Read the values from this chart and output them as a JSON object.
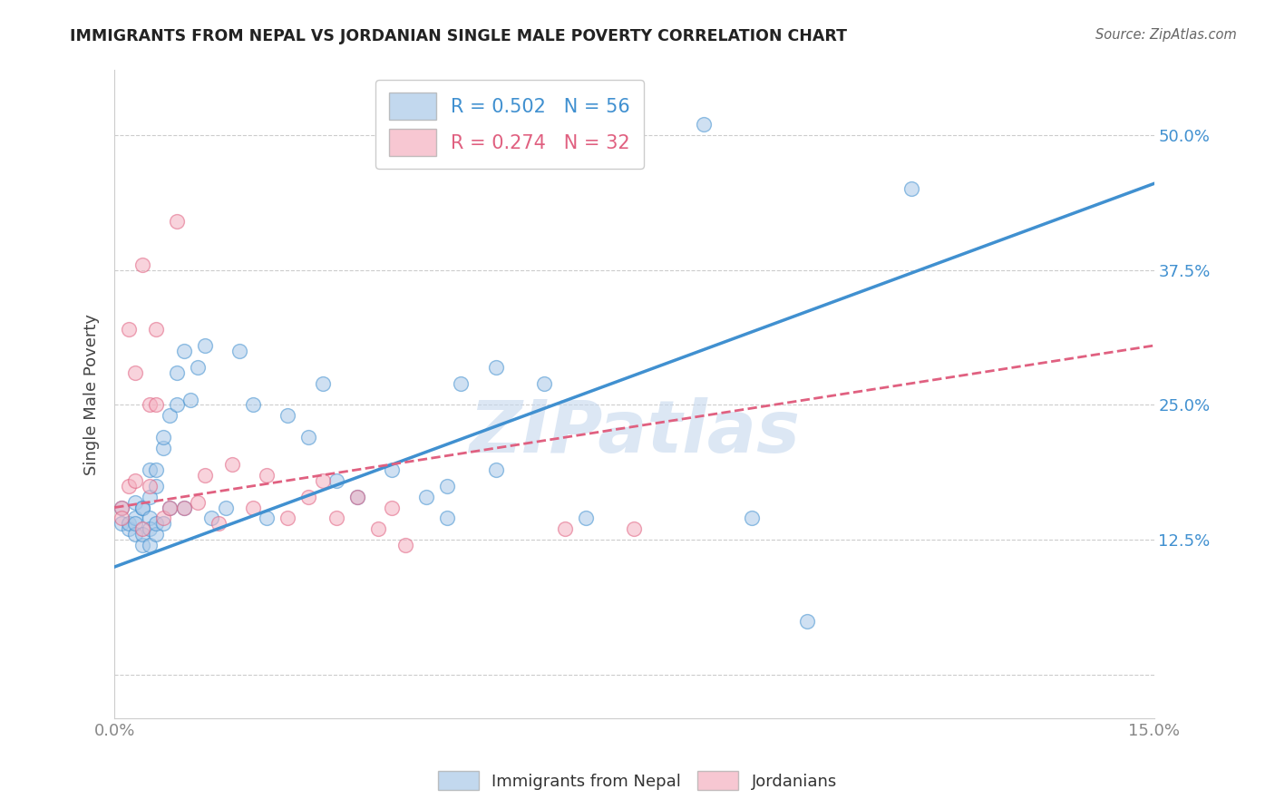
{
  "title": "IMMIGRANTS FROM NEPAL VS JORDANIAN SINGLE MALE POVERTY CORRELATION CHART",
  "source": "Source: ZipAtlas.com",
  "ylabel": "Single Male Poverty",
  "legend_labels": [
    "Immigrants from Nepal",
    "Jordanians"
  ],
  "r_nepal": 0.502,
  "n_nepal": 56,
  "r_jordan": 0.274,
  "n_jordan": 32,
  "xlim": [
    0.0,
    0.15
  ],
  "ylim": [
    -0.04,
    0.56
  ],
  "yticks": [
    0.0,
    0.125,
    0.25,
    0.375,
    0.5
  ],
  "ytick_labels": [
    "",
    "12.5%",
    "25.0%",
    "37.5%",
    "50.0%"
  ],
  "xticks": [
    0.0,
    0.03,
    0.06,
    0.09,
    0.12,
    0.15
  ],
  "xtick_labels": [
    "0.0%",
    "",
    "",
    "",
    "",
    "15.0%"
  ],
  "color_nepal": "#a8c8e8",
  "color_jordan": "#f4b0c0",
  "line_color_nepal": "#4090d0",
  "line_color_jordan": "#e06080",
  "watermark": "ZIPatlas",
  "watermark_color": "#c5d8ee",
  "nepal_line_x0": 0.0,
  "nepal_line_y0": 0.1,
  "nepal_line_x1": 0.15,
  "nepal_line_y1": 0.455,
  "jordan_line_x0": 0.0,
  "jordan_line_y0": 0.155,
  "jordan_line_x1": 0.15,
  "jordan_line_y1": 0.305,
  "nepal_x": [
    0.001,
    0.001,
    0.002,
    0.002,
    0.003,
    0.003,
    0.003,
    0.003,
    0.004,
    0.004,
    0.004,
    0.004,
    0.005,
    0.005,
    0.005,
    0.005,
    0.005,
    0.006,
    0.006,
    0.006,
    0.006,
    0.007,
    0.007,
    0.007,
    0.008,
    0.008,
    0.009,
    0.009,
    0.01,
    0.01,
    0.011,
    0.012,
    0.013,
    0.014,
    0.016,
    0.018,
    0.02,
    0.022,
    0.025,
    0.028,
    0.03,
    0.032,
    0.035,
    0.04,
    0.045,
    0.048,
    0.05,
    0.055,
    0.062,
    0.068,
    0.048,
    0.055,
    0.085,
    0.092,
    0.1,
    0.115
  ],
  "nepal_y": [
    0.155,
    0.14,
    0.135,
    0.14,
    0.13,
    0.145,
    0.16,
    0.14,
    0.155,
    0.12,
    0.13,
    0.155,
    0.145,
    0.135,
    0.12,
    0.165,
    0.19,
    0.13,
    0.175,
    0.19,
    0.14,
    0.21,
    0.14,
    0.22,
    0.24,
    0.155,
    0.25,
    0.28,
    0.3,
    0.155,
    0.255,
    0.285,
    0.305,
    0.145,
    0.155,
    0.3,
    0.25,
    0.145,
    0.24,
    0.22,
    0.27,
    0.18,
    0.165,
    0.19,
    0.165,
    0.145,
    0.27,
    0.285,
    0.27,
    0.145,
    0.175,
    0.19,
    0.51,
    0.145,
    0.05,
    0.45
  ],
  "jordan_x": [
    0.001,
    0.001,
    0.002,
    0.002,
    0.003,
    0.003,
    0.004,
    0.004,
    0.005,
    0.005,
    0.006,
    0.006,
    0.007,
    0.008,
    0.009,
    0.01,
    0.012,
    0.013,
    0.015,
    0.017,
    0.02,
    0.022,
    0.025,
    0.028,
    0.03,
    0.032,
    0.035,
    0.038,
    0.04,
    0.042,
    0.065,
    0.075
  ],
  "jordan_y": [
    0.155,
    0.145,
    0.175,
    0.32,
    0.18,
    0.28,
    0.135,
    0.38,
    0.25,
    0.175,
    0.32,
    0.25,
    0.145,
    0.155,
    0.42,
    0.155,
    0.16,
    0.185,
    0.14,
    0.195,
    0.155,
    0.185,
    0.145,
    0.165,
    0.18,
    0.145,
    0.165,
    0.135,
    0.155,
    0.12,
    0.135,
    0.135
  ]
}
